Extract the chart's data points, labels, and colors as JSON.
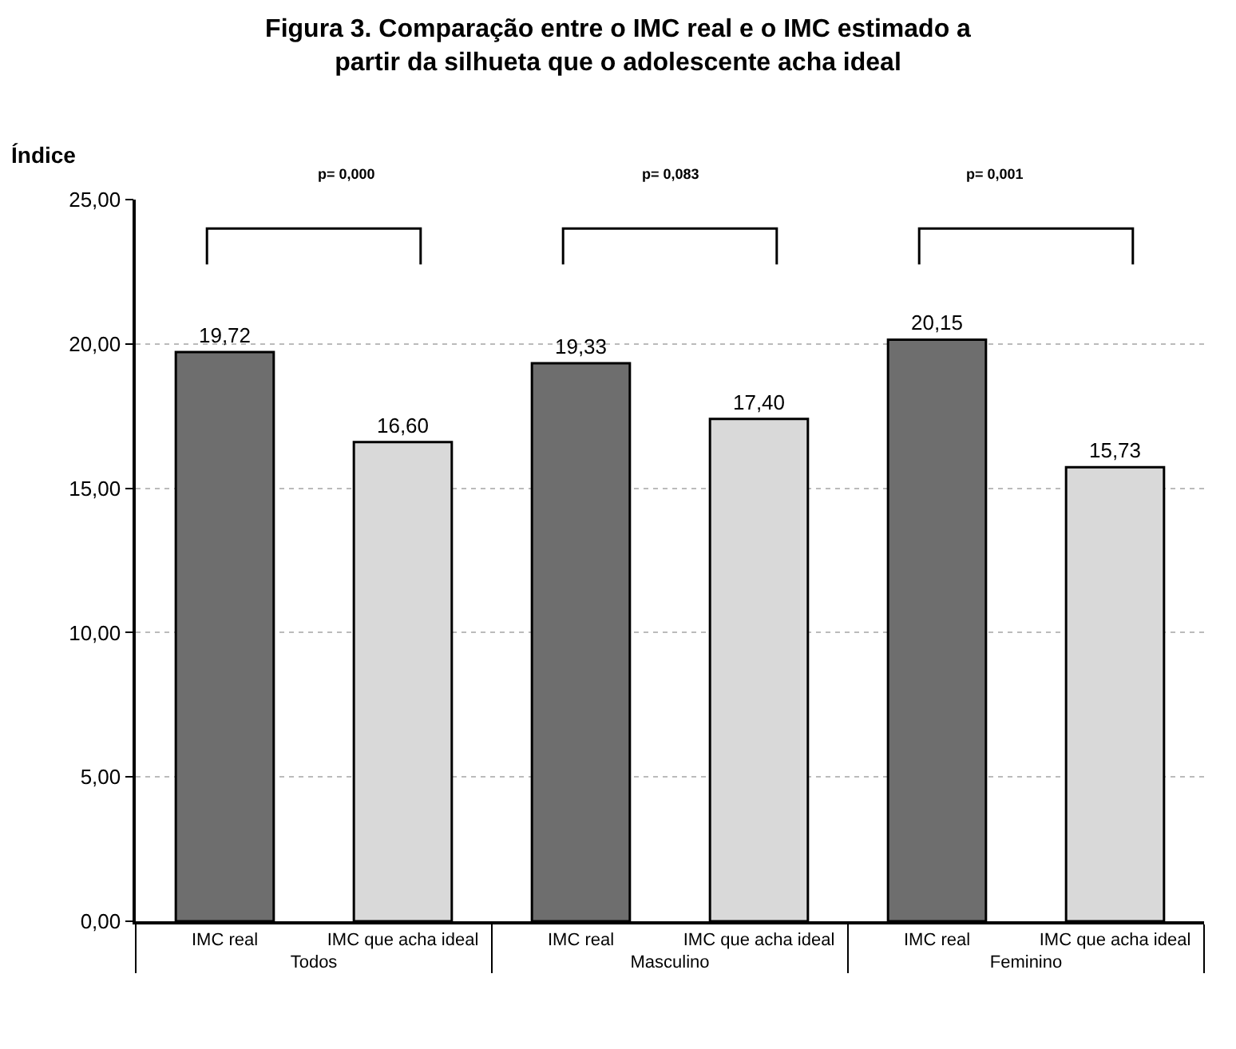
{
  "chart_data": {
    "type": "bar",
    "title": "Figura 3. Comparação entre o IMC real e o IMC estimado a partir da silhueta que o adolescente acha ideal",
    "ylabel": "Índice",
    "categories": [
      "Todos",
      "Masculino",
      "Feminino"
    ],
    "series": [
      {
        "name": "IMC real",
        "color": "#6e6e6e",
        "values": [
          19.72,
          19.33,
          20.15
        ],
        "value_labels": [
          "19,72",
          "19,33",
          "20,15"
        ]
      },
      {
        "name": "IMC que acha ideal",
        "color": "#d9d9d9",
        "values": [
          16.6,
          17.4,
          15.73
        ],
        "value_labels": [
          "16,60",
          "17,40",
          "15,73"
        ]
      }
    ],
    "ylim": [
      0,
      25
    ],
    "yticks": [
      {
        "value": 0,
        "label": "0,00"
      },
      {
        "value": 5,
        "label": "5,00"
      },
      {
        "value": 10,
        "label": "10,00"
      },
      {
        "value": 15,
        "label": "15,00"
      },
      {
        "value": 20,
        "label": "20,00"
      },
      {
        "value": 25,
        "label": "25,00"
      }
    ],
    "grid": "y",
    "legend": false,
    "annotations": [
      "p= 0,000",
      "p= 0,083",
      "p= 0,001"
    ]
  }
}
